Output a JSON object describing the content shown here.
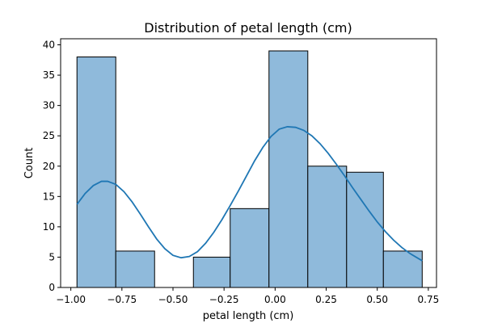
{
  "chart_data": {
    "type": "bar",
    "title": "Distribution of petal length (cm)",
    "xlabel": "petal length (cm)",
    "ylabel": "Count",
    "xlim": [
      -1.05,
      0.79
    ],
    "ylim": [
      0,
      41
    ],
    "x_ticks": [
      -1.0,
      -0.75,
      -0.5,
      -0.25,
      0.0,
      0.25,
      0.5,
      0.75
    ],
    "x_tick_labels": [
      "−1.00",
      "−0.75",
      "−0.50",
      "−0.25",
      "0.00",
      "0.25",
      "0.50",
      "0.75"
    ],
    "y_ticks": [
      0,
      5,
      10,
      15,
      20,
      25,
      30,
      35,
      40
    ],
    "y_tick_labels": [
      "0",
      "5",
      "10",
      "15",
      "20",
      "25",
      "30",
      "35",
      "40"
    ],
    "bin_edges": [
      -0.97,
      -0.78,
      -0.59,
      -0.4,
      -0.22,
      -0.03,
      0.16,
      0.35,
      0.53,
      0.72
    ],
    "counts": [
      38,
      6,
      0,
      5,
      13,
      39,
      20,
      19,
      6
    ],
    "kde": {
      "x": [
        -0.97,
        -0.93,
        -0.89,
        -0.85,
        -0.82,
        -0.78,
        -0.74,
        -0.7,
        -0.66,
        -0.62,
        -0.58,
        -0.54,
        -0.5,
        -0.46,
        -0.42,
        -0.38,
        -0.34,
        -0.3,
        -0.26,
        -0.22,
        -0.18,
        -0.14,
        -0.1,
        -0.06,
        -0.02,
        0.02,
        0.06,
        0.1,
        0.14,
        0.18,
        0.22,
        0.26,
        0.3,
        0.34,
        0.38,
        0.42,
        0.46,
        0.5,
        0.54,
        0.58,
        0.62,
        0.66,
        0.72
      ],
      "y": [
        13.7,
        15.5,
        16.8,
        17.5,
        17.5,
        17.0,
        15.8,
        14.1,
        12.1,
        10.0,
        8.0,
        6.4,
        5.3,
        4.9,
        5.1,
        5.9,
        7.3,
        9.1,
        11.2,
        13.5,
        15.9,
        18.4,
        20.9,
        23.1,
        24.9,
        26.1,
        26.5,
        26.4,
        25.9,
        25.0,
        23.7,
        22.1,
        20.3,
        18.4,
        16.4,
        14.5,
        12.6,
        10.8,
        9.2,
        7.8,
        6.6,
        5.6,
        4.4
      ]
    },
    "colors": {
      "bar_fill": "#8fbadb",
      "bar_edge": "#000000",
      "kde_line": "#1f77b4"
    },
    "grid": false,
    "legend": "none"
  }
}
